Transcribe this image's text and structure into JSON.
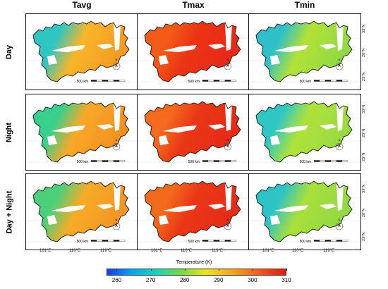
{
  "columns": [
    {
      "label": "Tavg"
    },
    {
      "label": "Tmax"
    },
    {
      "label": "Tmin"
    }
  ],
  "rows": [
    {
      "label": "Day"
    },
    {
      "label": "Night"
    },
    {
      "label": "Day + Night"
    }
  ],
  "lat_labels": [
    "33°N",
    "28°N",
    "23°N"
  ],
  "lon_labels": [
    "101°E",
    "110°E",
    "119°E"
  ],
  "scale_bar_label": "500 km",
  "north_label": "N",
  "colorbar": {
    "title": "Temperature (K)",
    "ticks": [
      "260",
      "270",
      "280",
      "290",
      "300",
      "310"
    ],
    "min": 257,
    "max": 310,
    "colors": [
      "#1a3df0",
      "#00a6f5",
      "#19d6b4",
      "#7ad93c",
      "#e8e619",
      "#fba51f",
      "#f45a18",
      "#e01b12"
    ]
  },
  "panel_fill": {
    "Tavg-Day": {
      "west": "#2fc6c2",
      "central": "#f9b52a",
      "east": "#f39a22"
    },
    "Tmax-Day": {
      "west": "#f45a18",
      "central": "#ec3414",
      "east": "#e8281a"
    },
    "Tmin-Day": {
      "west": "#2fbfc8",
      "central": "#b3e137",
      "east": "#8fd945"
    },
    "Tavg-Night": {
      "west": "#38d08c",
      "central": "#f9a828",
      "east": "#f39020"
    },
    "Tmax-Night": {
      "west": "#f56a1e",
      "central": "#ea3816",
      "east": "#e52a16"
    },
    "Tmin-Night": {
      "west": "#30c6c4",
      "central": "#aee23b",
      "east": "#9ad943"
    },
    "Tavg-DayNight": {
      "west": "#4dcf7a",
      "central": "#f8ab27",
      "east": "#f39423"
    },
    "Tmax-DayNight": {
      "west": "#f46a1c",
      "central": "#eb3716",
      "east": "#e62b17"
    },
    "Tmin-DayNight": {
      "west": "#2ec3c6",
      "central": "#a9df3b",
      "east": "#93d845"
    }
  }
}
